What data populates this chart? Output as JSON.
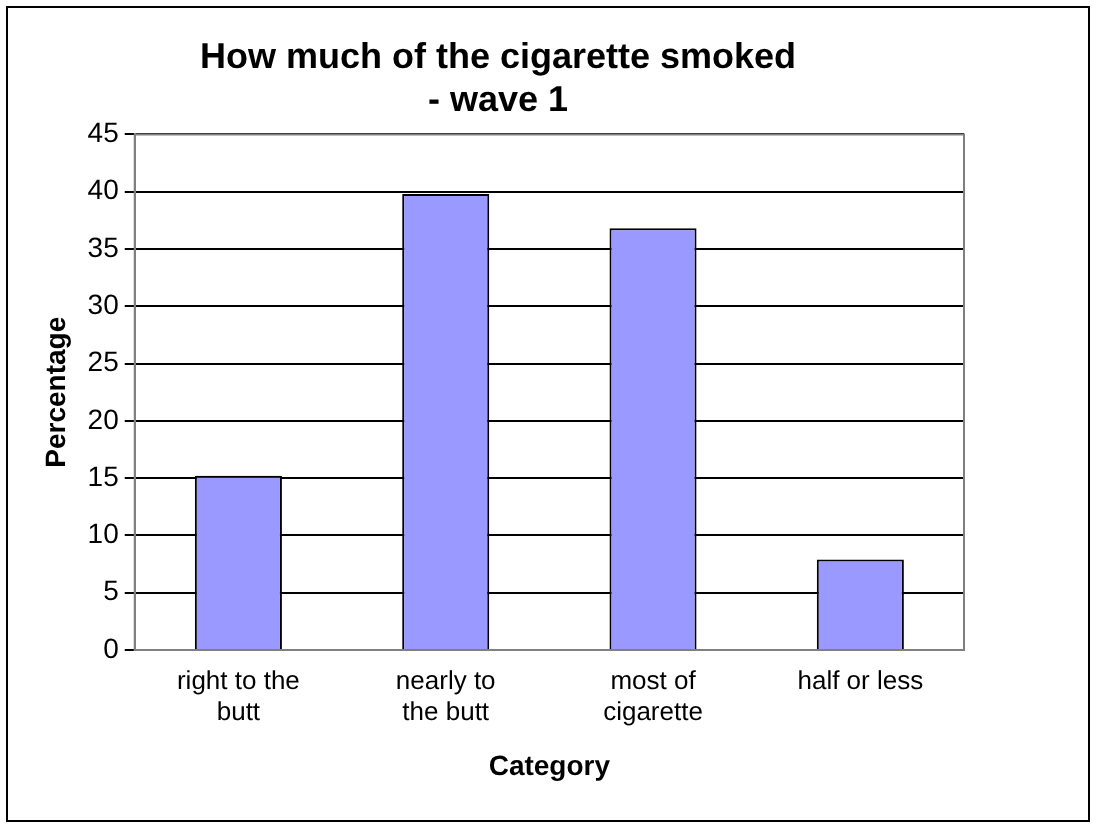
{
  "chart_data": {
    "type": "bar",
    "title": "How much of the cigarette smoked - wave 1",
    "xlabel": "Category",
    "ylabel": "Percentage",
    "categories": [
      "right to the butt",
      "nearly to the butt",
      "most of cigarette",
      "half or less"
    ],
    "values": [
      15.2,
      39.8,
      36.8,
      7.9
    ],
    "color": "#9999ff",
    "ylim": [
      0,
      45
    ],
    "yticks": [
      0,
      5,
      10,
      15,
      20,
      25,
      30,
      35,
      40,
      45
    ],
    "grid": "y",
    "legend": false
  }
}
